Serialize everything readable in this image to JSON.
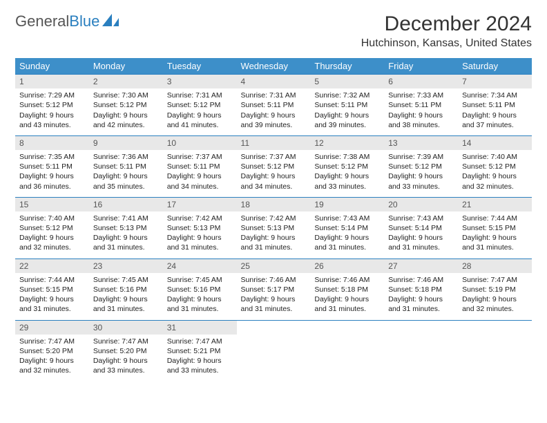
{
  "logo": {
    "text1": "General",
    "text2": "Blue"
  },
  "title": "December 2024",
  "location": "Hutchinson, Kansas, United States",
  "colors": {
    "header_bg": "#3d8fc9",
    "header_text": "#ffffff",
    "daynum_bg": "#e8e8e8",
    "border": "#2a7fbf",
    "logo_gray": "#555555",
    "logo_blue": "#2a7fbf"
  },
  "day_names": [
    "Sunday",
    "Monday",
    "Tuesday",
    "Wednesday",
    "Thursday",
    "Friday",
    "Saturday"
  ],
  "weeks": [
    [
      {
        "n": "1",
        "sr": "7:29 AM",
        "ss": "5:12 PM",
        "dl": "9 hours and 43 minutes."
      },
      {
        "n": "2",
        "sr": "7:30 AM",
        "ss": "5:12 PM",
        "dl": "9 hours and 42 minutes."
      },
      {
        "n": "3",
        "sr": "7:31 AM",
        "ss": "5:12 PM",
        "dl": "9 hours and 41 minutes."
      },
      {
        "n": "4",
        "sr": "7:31 AM",
        "ss": "5:11 PM",
        "dl": "9 hours and 39 minutes."
      },
      {
        "n": "5",
        "sr": "7:32 AM",
        "ss": "5:11 PM",
        "dl": "9 hours and 39 minutes."
      },
      {
        "n": "6",
        "sr": "7:33 AM",
        "ss": "5:11 PM",
        "dl": "9 hours and 38 minutes."
      },
      {
        "n": "7",
        "sr": "7:34 AM",
        "ss": "5:11 PM",
        "dl": "9 hours and 37 minutes."
      }
    ],
    [
      {
        "n": "8",
        "sr": "7:35 AM",
        "ss": "5:11 PM",
        "dl": "9 hours and 36 minutes."
      },
      {
        "n": "9",
        "sr": "7:36 AM",
        "ss": "5:11 PM",
        "dl": "9 hours and 35 minutes."
      },
      {
        "n": "10",
        "sr": "7:37 AM",
        "ss": "5:11 PM",
        "dl": "9 hours and 34 minutes."
      },
      {
        "n": "11",
        "sr": "7:37 AM",
        "ss": "5:12 PM",
        "dl": "9 hours and 34 minutes."
      },
      {
        "n": "12",
        "sr": "7:38 AM",
        "ss": "5:12 PM",
        "dl": "9 hours and 33 minutes."
      },
      {
        "n": "13",
        "sr": "7:39 AM",
        "ss": "5:12 PM",
        "dl": "9 hours and 33 minutes."
      },
      {
        "n": "14",
        "sr": "7:40 AM",
        "ss": "5:12 PM",
        "dl": "9 hours and 32 minutes."
      }
    ],
    [
      {
        "n": "15",
        "sr": "7:40 AM",
        "ss": "5:12 PM",
        "dl": "9 hours and 32 minutes."
      },
      {
        "n": "16",
        "sr": "7:41 AM",
        "ss": "5:13 PM",
        "dl": "9 hours and 31 minutes."
      },
      {
        "n": "17",
        "sr": "7:42 AM",
        "ss": "5:13 PM",
        "dl": "9 hours and 31 minutes."
      },
      {
        "n": "18",
        "sr": "7:42 AM",
        "ss": "5:13 PM",
        "dl": "9 hours and 31 minutes."
      },
      {
        "n": "19",
        "sr": "7:43 AM",
        "ss": "5:14 PM",
        "dl": "9 hours and 31 minutes."
      },
      {
        "n": "20",
        "sr": "7:43 AM",
        "ss": "5:14 PM",
        "dl": "9 hours and 31 minutes."
      },
      {
        "n": "21",
        "sr": "7:44 AM",
        "ss": "5:15 PM",
        "dl": "9 hours and 31 minutes."
      }
    ],
    [
      {
        "n": "22",
        "sr": "7:44 AM",
        "ss": "5:15 PM",
        "dl": "9 hours and 31 minutes."
      },
      {
        "n": "23",
        "sr": "7:45 AM",
        "ss": "5:16 PM",
        "dl": "9 hours and 31 minutes."
      },
      {
        "n": "24",
        "sr": "7:45 AM",
        "ss": "5:16 PM",
        "dl": "9 hours and 31 minutes."
      },
      {
        "n": "25",
        "sr": "7:46 AM",
        "ss": "5:17 PM",
        "dl": "9 hours and 31 minutes."
      },
      {
        "n": "26",
        "sr": "7:46 AM",
        "ss": "5:18 PM",
        "dl": "9 hours and 31 minutes."
      },
      {
        "n": "27",
        "sr": "7:46 AM",
        "ss": "5:18 PM",
        "dl": "9 hours and 31 minutes."
      },
      {
        "n": "28",
        "sr": "7:47 AM",
        "ss": "5:19 PM",
        "dl": "9 hours and 32 minutes."
      }
    ],
    [
      {
        "n": "29",
        "sr": "7:47 AM",
        "ss": "5:20 PM",
        "dl": "9 hours and 32 minutes."
      },
      {
        "n": "30",
        "sr": "7:47 AM",
        "ss": "5:20 PM",
        "dl": "9 hours and 33 minutes."
      },
      {
        "n": "31",
        "sr": "7:47 AM",
        "ss": "5:21 PM",
        "dl": "9 hours and 33 minutes."
      },
      null,
      null,
      null,
      null
    ]
  ],
  "labels": {
    "sunrise": "Sunrise:",
    "sunset": "Sunset:",
    "daylight": "Daylight:"
  }
}
